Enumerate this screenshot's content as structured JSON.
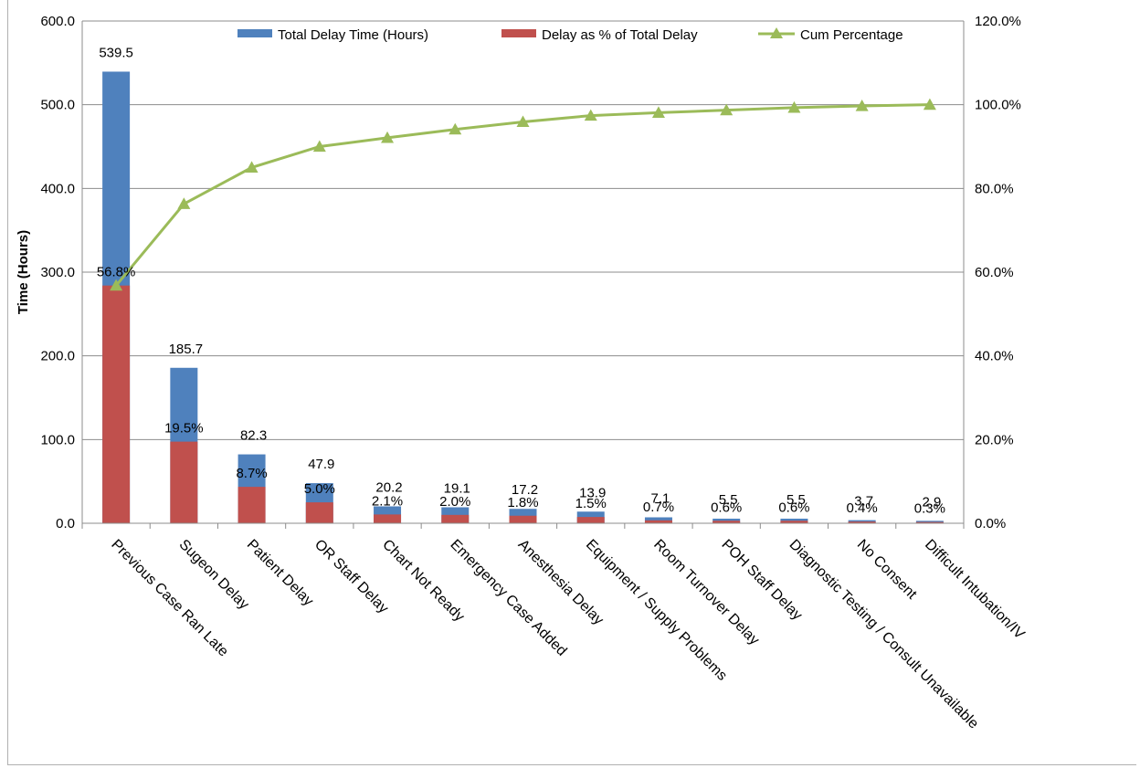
{
  "chart_data": {
    "type": "bar",
    "categories": [
      "Previous Case Ran Late",
      "Sugeon Delay",
      "Patient Delay",
      "OR Staff Delay",
      "Chart Not Ready",
      "Emergency Case Added",
      "Anesthesia Delay",
      "Equipment / Supply Problems",
      "Room Turnover Delay",
      "POH Staff Delay",
      "Diagnostic Testing / Consult Unavailable",
      "No Consent",
      "Difficult Intubation/IV"
    ],
    "series": [
      {
        "name": "Total Delay Time  (Hours)",
        "type": "bar",
        "axis": "left",
        "color": "#4f81bd",
        "values": [
          539.5,
          185.7,
          82.3,
          47.9,
          20.2,
          19.1,
          17.2,
          13.9,
          7.1,
          5.5,
          5.5,
          3.7,
          2.9
        ],
        "labels": [
          "539.5",
          "185.7",
          "82.3",
          "47.9",
          "20.2",
          "19.1",
          "17.2",
          "13.9",
          "7.1",
          "5.5",
          "5.5",
          "3.7",
          "2.9"
        ]
      },
      {
        "name": "Delay as % of Total Delay",
        "type": "bar",
        "axis": "right",
        "color": "#c0504d",
        "values": [
          56.8,
          19.5,
          8.7,
          5.0,
          2.1,
          2.0,
          1.8,
          1.5,
          0.7,
          0.6,
          0.6,
          0.4,
          0.3
        ],
        "labels": [
          "56.8%",
          "19.5%",
          "8.7%",
          "5.0%",
          "2.1%",
          "2.0%",
          "1.8%",
          "1.5%",
          "0.7%",
          "0.6%",
          "0.6%",
          "0.4%",
          "0.3%"
        ]
      },
      {
        "name": "Cum Percentage",
        "type": "line",
        "axis": "right",
        "color": "#9bbb59",
        "marker": "triangle",
        "values": [
          56.8,
          76.3,
          85.0,
          90.0,
          92.1,
          94.1,
          95.9,
          97.4,
          98.1,
          98.7,
          99.3,
          99.7,
          100.0
        ]
      }
    ],
    "y_left": {
      "label": "Time (Hours)",
      "range": [
        0,
        600
      ],
      "ticks": [
        "0.0",
        "100.0",
        "200.0",
        "300.0",
        "400.0",
        "500.0",
        "600.0"
      ]
    },
    "y_right": {
      "label": "",
      "range": [
        0,
        120
      ],
      "ticks": [
        "0.0%",
        "20.0%",
        "40.0%",
        "60.0%",
        "80.0%",
        "100.0%",
        "120.0%"
      ]
    },
    "xlabel": "",
    "title": "",
    "grid": true,
    "legend_position": "top"
  }
}
